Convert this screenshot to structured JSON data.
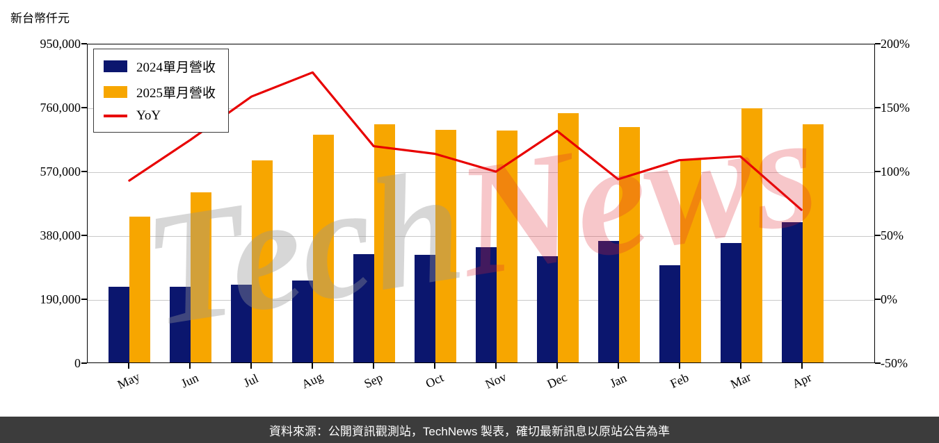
{
  "title": "新台幣仟元",
  "watermark": {
    "part1": "Tech",
    "part2": "News"
  },
  "footer": "資料來源：公開資訊觀測站，TechNews 製表，確切最新訊息以原站公告為準",
  "chart_data": {
    "type": "bar+line",
    "categories": [
      "May",
      "Jun",
      "Jul",
      "Aug",
      "Sep",
      "Oct",
      "Nov",
      "Dec",
      "Jan",
      "Feb",
      "Mar",
      "Apr"
    ],
    "series": [
      {
        "name": "2024單月營收",
        "type": "bar",
        "axis": "left",
        "color": "#0b166e",
        "values": [
          225000,
          226000,
          231000,
          244000,
          322000,
          320000,
          343000,
          315000,
          361000,
          289000,
          355000,
          417000
        ]
      },
      {
        "name": "2025單月營收",
        "type": "bar",
        "axis": "left",
        "color": "#f7a600",
        "values": [
          434000,
          506000,
          601000,
          677000,
          708000,
          692000,
          690000,
          741000,
          700000,
          605000,
          756000,
          708000
        ]
      },
      {
        "name": "YoY",
        "type": "line",
        "axis": "right",
        "color": "#e80000",
        "values": [
          93,
          125,
          159,
          178,
          120,
          114,
          100,
          132,
          94,
          109,
          112,
          70
        ]
      }
    ],
    "left_axis": {
      "min": 0,
      "max": 950000,
      "ticks": [
        "0",
        "190,000",
        "380,000",
        "570,000",
        "760,000",
        "950,000"
      ]
    },
    "right_axis": {
      "min": -50,
      "max": 200,
      "ticks": [
        "-50%",
        "0%",
        "50%",
        "100%",
        "150%",
        "200%"
      ]
    },
    "grid": "horizontal",
    "legend_position": "top-left"
  }
}
